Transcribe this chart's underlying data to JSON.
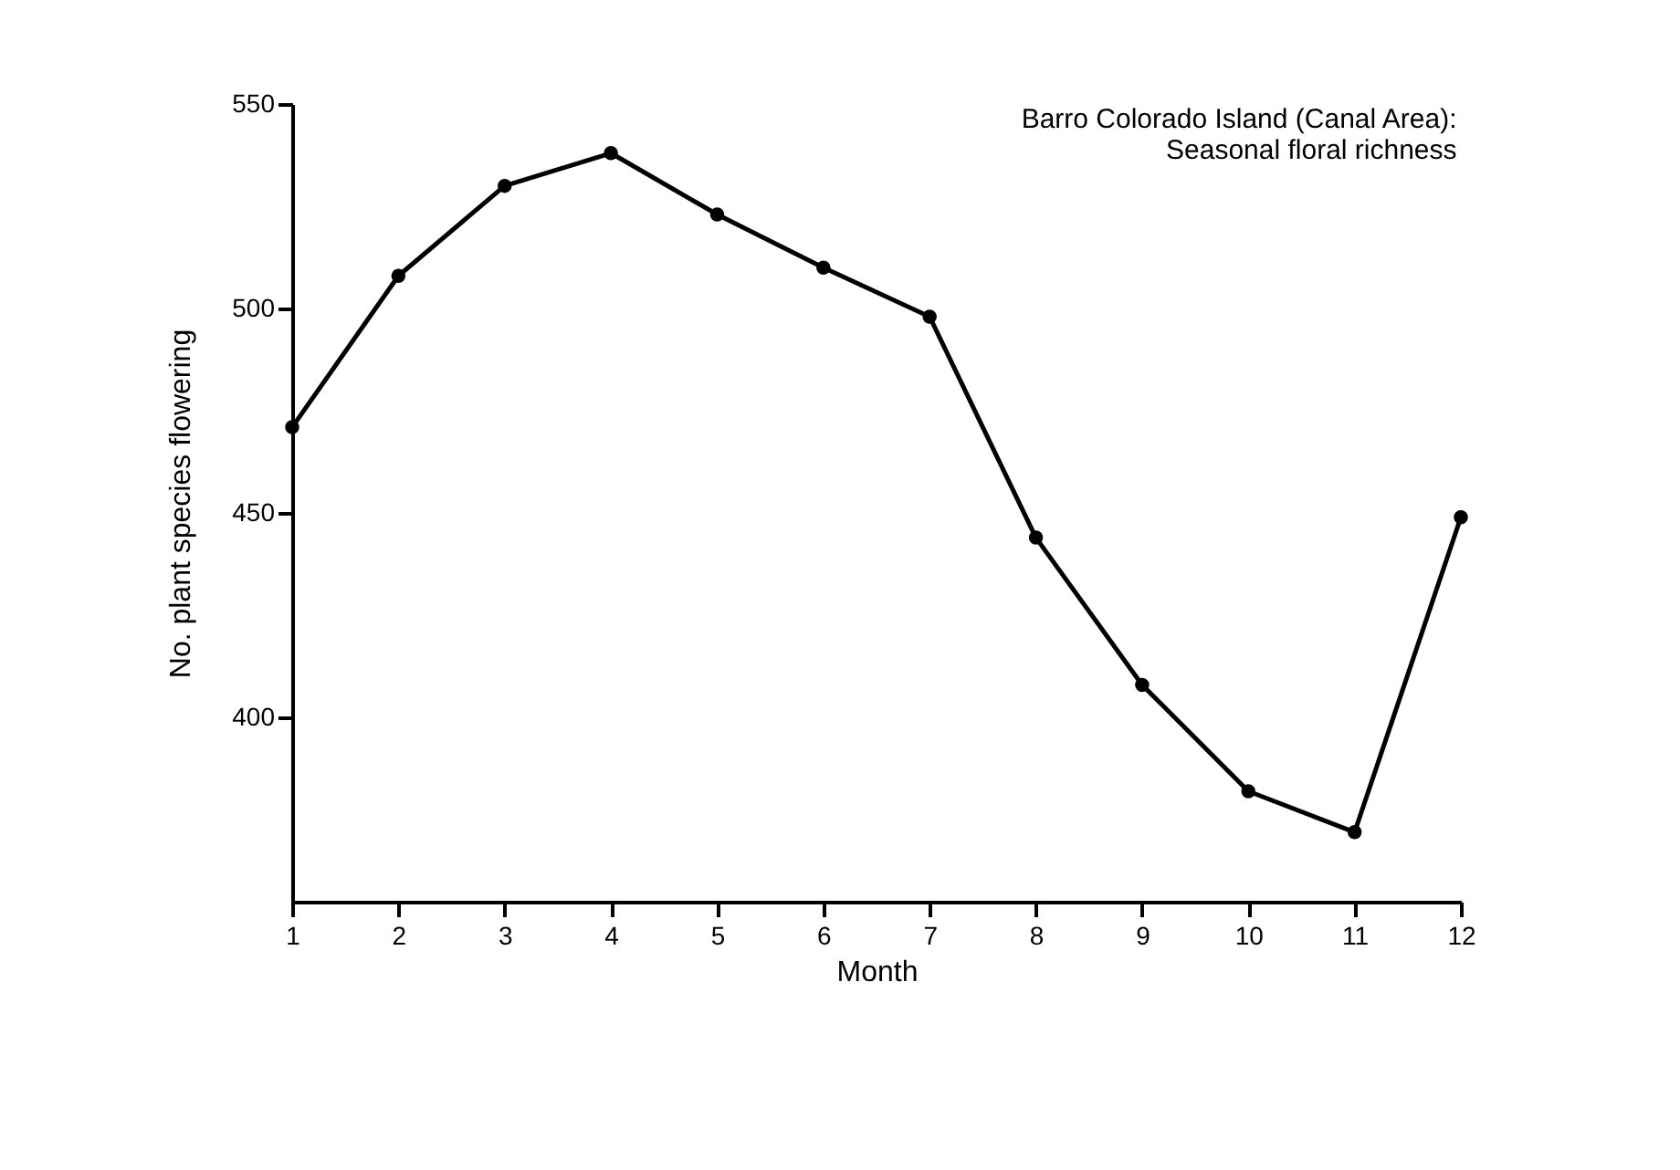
{
  "chart_data": {
    "type": "line",
    "title": "Barro Colorado Island (Canal Area):\nSeasonal floral richness",
    "xlabel": "Month",
    "ylabel": "No. plant species flowering",
    "x": [
      1,
      2,
      3,
      4,
      5,
      6,
      7,
      8,
      9,
      10,
      11,
      12
    ],
    "series": [
      {
        "color": "#000000",
        "values": [
          471,
          508,
          530,
          538,
          523,
          510,
          498,
          444,
          408,
          382,
          372,
          449
        ]
      }
    ],
    "xlim": [
      1,
      12
    ],
    "xticks": [
      1,
      2,
      3,
      4,
      5,
      6,
      7,
      8,
      9,
      10,
      11,
      12
    ],
    "ylim": [
      355,
      550
    ],
    "yticks": [
      400,
      450,
      500,
      550
    ],
    "marker": "circle",
    "line_style": "solid",
    "grid": false,
    "legend": false
  }
}
